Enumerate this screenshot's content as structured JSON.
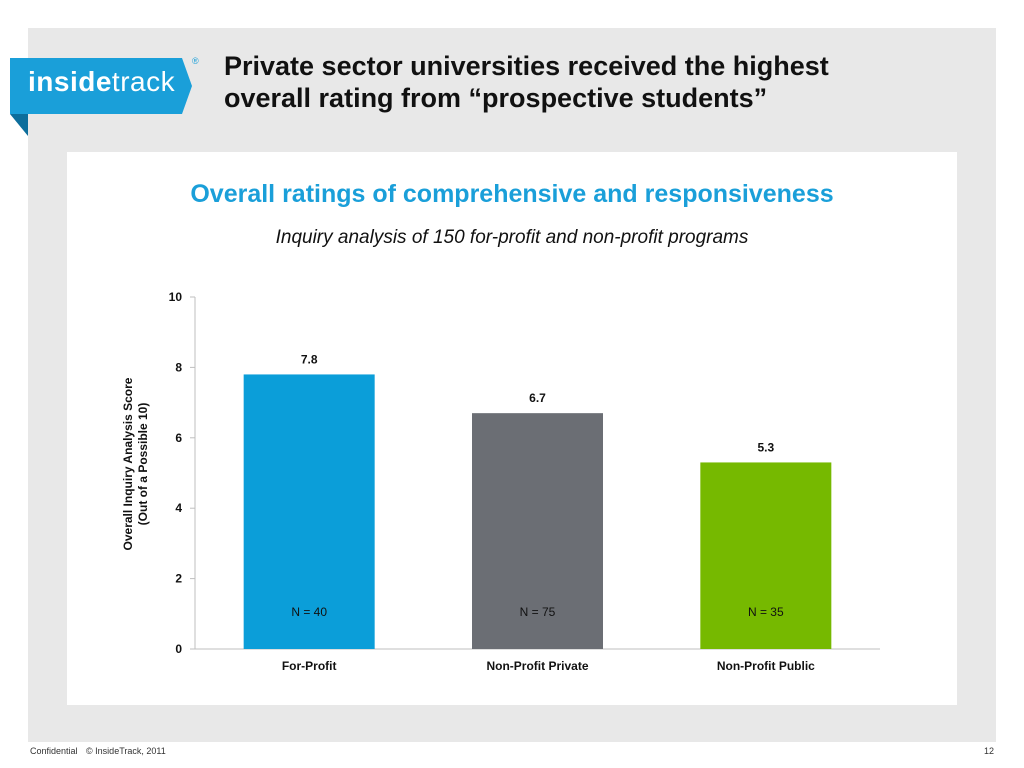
{
  "header": {
    "logo_left": "inside",
    "logo_right": "track",
    "logo_mark": "®",
    "headline_line1": "Private sector universities received the highest",
    "headline_line2": "overall rating from “prospective students”"
  },
  "footer": {
    "confidential": "Confidential",
    "copyright": "© InsideTrack, 2011",
    "page_number": "12"
  },
  "colors": {
    "brand_blue": "#1a9fd9",
    "bar_for_profit": "#0b9ed9",
    "bar_non_profit_private": "#6b6e74",
    "bar_non_profit_public": "#76b900"
  },
  "chart_data": {
    "type": "bar",
    "title": "Overall ratings of comprehensive and responsiveness",
    "subtitle": "Inquiry analysis of 150 for-profit and non-profit programs",
    "ylabel_line1": "Overall Inquiry Analysis Score",
    "ylabel_line2": "(Out of a Possible 10)",
    "xlabel": "",
    "ylim": [
      0,
      10
    ],
    "yticks": [
      0,
      2,
      4,
      6,
      8,
      10
    ],
    "grid": false,
    "categories": [
      "For-Profit",
      "Non-Profit Private",
      "Non-Profit Public"
    ],
    "values": [
      7.8,
      6.7,
      5.3
    ],
    "value_labels": [
      "7.8",
      "6.7",
      "5.3"
    ],
    "annotations": [
      "N = 40",
      "N = 75",
      "N = 35"
    ],
    "bar_colors": [
      "#0b9ed9",
      "#6b6e74",
      "#76b900"
    ]
  }
}
